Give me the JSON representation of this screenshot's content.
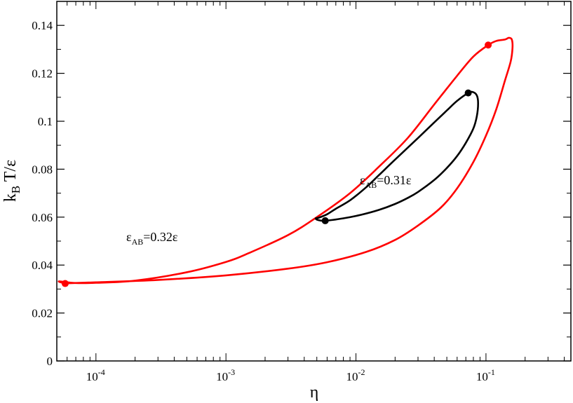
{
  "chart_data": {
    "type": "line",
    "title": "",
    "xlabel": "η",
    "ylabel_parts": [
      "k",
      "B",
      " T/ε"
    ],
    "xscale": "log",
    "xlim": [
      5e-05,
      0.45
    ],
    "ylim": [
      0,
      0.15
    ],
    "x_ticks": [
      {
        "value": 0.0001,
        "base": "10",
        "exp": "-4"
      },
      {
        "value": 0.001,
        "base": "10",
        "exp": "-3"
      },
      {
        "value": 0.01,
        "base": "10",
        "exp": "-2"
      },
      {
        "value": 0.1,
        "base": "10",
        "exp": "-1"
      }
    ],
    "y_ticks": [
      0,
      0.02,
      0.04,
      0.06,
      0.08,
      0.1,
      0.12,
      0.14
    ],
    "y_tick_labels": [
      "0",
      "0.02",
      "0.04",
      "0.06",
      "0.08",
      "0.1",
      "0.12",
      "0.14"
    ],
    "grid": false,
    "series": [
      {
        "color": "#ff0000",
        "label": {
          "pre": "ε",
          "sub": "AB",
          "post": "=0.32ε"
        },
        "x": [
          5.8e-05,
          6e-05,
          0.0001,
          0.0003,
          0.001,
          0.003,
          0.006,
          0.012,
          0.02,
          0.03,
          0.045,
          0.06,
          0.08,
          0.1,
          0.12,
          0.14,
          0.155,
          0.16,
          0.158,
          0.15,
          0.14,
          0.12,
          0.104,
          0.08,
          0.06,
          0.04,
          0.025,
          0.015,
          0.009,
          0.005,
          0.003,
          0.0015,
          0.001,
          0.0005,
          0.0002,
          0.0001,
          7e-05,
          5.2e-05,
          5.8e-05
        ],
        "y": [
          0.0323,
          0.0324,
          0.0328,
          0.0338,
          0.0357,
          0.0385,
          0.0412,
          0.0455,
          0.0505,
          0.0565,
          0.064,
          0.072,
          0.083,
          0.094,
          0.105,
          0.117,
          0.125,
          0.1307,
          0.1341,
          0.1348,
          0.1341,
          0.1335,
          0.1318,
          0.127,
          0.119,
          0.107,
          0.093,
          0.081,
          0.07,
          0.06,
          0.0525,
          0.045,
          0.0413,
          0.037,
          0.0335,
          0.0326,
          0.0325,
          0.0332,
          0.0323
        ]
      },
      {
        "color": "#000000",
        "label": {
          "pre": "ε",
          "sub": "AB",
          "post": "=0.31ε"
        },
        "x": [
          0.0058,
          0.008,
          0.011,
          0.015,
          0.02,
          0.025,
          0.03,
          0.04,
          0.05,
          0.06,
          0.07,
          0.08,
          0.085,
          0.087,
          0.085,
          0.079,
          0.073,
          0.06,
          0.05,
          0.04,
          0.03,
          0.02,
          0.015,
          0.012,
          0.009,
          0.007,
          0.006,
          0.0052,
          0.0049,
          0.0051,
          0.0058
        ],
        "y": [
          0.0585,
          0.0595,
          0.061,
          0.063,
          0.0655,
          0.068,
          0.0705,
          0.0755,
          0.0805,
          0.0855,
          0.091,
          0.097,
          0.102,
          0.1075,
          0.1108,
          0.1122,
          0.1118,
          0.1085,
          0.1045,
          0.0995,
          0.093,
          0.084,
          0.0775,
          0.0725,
          0.067,
          0.0635,
          0.0612,
          0.0598,
          0.0595,
          0.0588,
          0.0585
        ]
      }
    ],
    "markers": [
      {
        "x": 5.8e-05,
        "y": 0.0323,
        "color": "#ff0000"
      },
      {
        "x": 0.104,
        "y": 0.1318,
        "color": "#ff0000"
      },
      {
        "x": 0.0058,
        "y": 0.0585,
        "color": "#000000"
      },
      {
        "x": 0.073,
        "y": 0.1118,
        "color": "#000000"
      }
    ]
  }
}
